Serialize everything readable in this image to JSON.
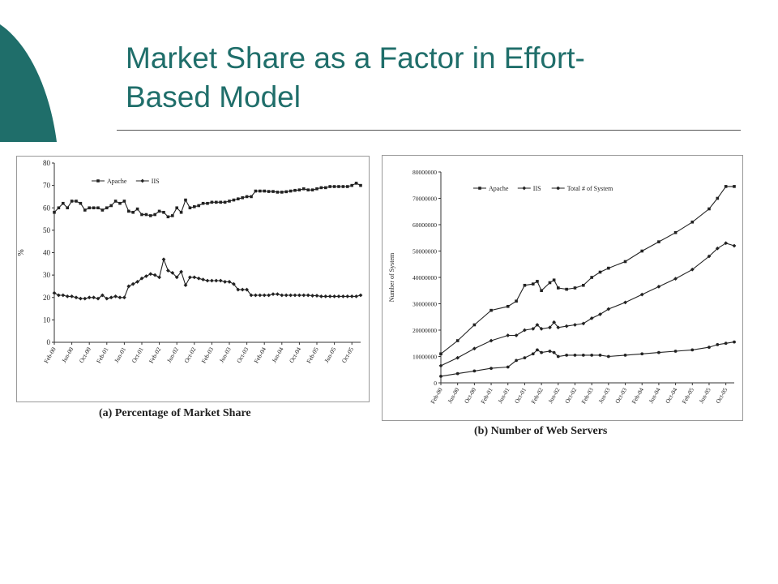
{
  "slide": {
    "title_line1": "Market Share as a Factor in Effort-",
    "title_line2": "Based Model",
    "accent_color": "#1f6e6a"
  },
  "chart_data": [
    {
      "type": "line",
      "caption": "(a) Percentage of Market Share",
      "ylabel": "%",
      "ylim": [
        0,
        80
      ],
      "yticks": [
        0,
        10,
        20,
        30,
        40,
        50,
        60,
        70,
        80
      ],
      "xticks": [
        "Feb-00",
        "Jun-00",
        "Oct-00",
        "Feb-01",
        "Jun-01",
        "Oct-01",
        "Feb-02",
        "Jun-02",
        "Oct-02",
        "Feb-03",
        "Jun-03",
        "Oct-03",
        "Feb-04",
        "Jun-04",
        "Oct-04",
        "Feb-05",
        "Jun-05",
        "Oct-05"
      ],
      "x_months_range": [
        0,
        70
      ],
      "legend_placement": "top-left",
      "grid": false,
      "series": [
        {
          "name": "Apache",
          "marker": "square",
          "points": [
            [
              0,
              58
            ],
            [
              1,
              60
            ],
            [
              2,
              62
            ],
            [
              3,
              60
            ],
            [
              4,
              63
            ],
            [
              5,
              63
            ],
            [
              6,
              62
            ],
            [
              7,
              59
            ],
            [
              8,
              60
            ],
            [
              9,
              60
            ],
            [
              10,
              60
            ],
            [
              11,
              59
            ],
            [
              12,
              60
            ],
            [
              13,
              61
            ],
            [
              14,
              63
            ],
            [
              15,
              62
            ],
            [
              16,
              63
            ],
            [
              17,
              58.5
            ],
            [
              18,
              58
            ],
            [
              19,
              59.5
            ],
            [
              20,
              57
            ],
            [
              21,
              57
            ],
            [
              22,
              56.5
            ],
            [
              23,
              57
            ],
            [
              24,
              58.5
            ],
            [
              25,
              58
            ],
            [
              26,
              56
            ],
            [
              27,
              56.5
            ],
            [
              28,
              60
            ],
            [
              29,
              58
            ],
            [
              30,
              63.5
            ],
            [
              31,
              60
            ],
            [
              32,
              60.5
            ],
            [
              33,
              61
            ],
            [
              34,
              62
            ],
            [
              35,
              62
            ],
            [
              36,
              62.5
            ],
            [
              37,
              62.5
            ],
            [
              38,
              62.5
            ],
            [
              39,
              62.5
            ],
            [
              40,
              63
            ],
            [
              41,
              63.5
            ],
            [
              42,
              64
            ],
            [
              43,
              64.5
            ],
            [
              44,
              65
            ],
            [
              45,
              65
            ],
            [
              46,
              67.5
            ],
            [
              47,
              67.5
            ],
            [
              48,
              67.5
            ],
            [
              49,
              67.3
            ],
            [
              50,
              67.3
            ],
            [
              51,
              67
            ],
            [
              52,
              67
            ],
            [
              53,
              67.2
            ],
            [
              54,
              67.5
            ],
            [
              55,
              67.8
            ],
            [
              56,
              68
            ],
            [
              57,
              68.5
            ],
            [
              58,
              68
            ],
            [
              59,
              68
            ],
            [
              60,
              68.5
            ],
            [
              61,
              69
            ],
            [
              62,
              69
            ],
            [
              63,
              69.5
            ],
            [
              64,
              69.5
            ],
            [
              65,
              69.5
            ],
            [
              66,
              69.5
            ],
            [
              67,
              69.5
            ],
            [
              68,
              70
            ],
            [
              69,
              71
            ],
            [
              70,
              70
            ]
          ]
        },
        {
          "name": "IIS",
          "marker": "diamond",
          "points": [
            [
              0,
              22
            ],
            [
              1,
              21
            ],
            [
              2,
              21
            ],
            [
              3,
              20.5
            ],
            [
              4,
              20.5
            ],
            [
              5,
              20
            ],
            [
              6,
              19.5
            ],
            [
              7,
              19.5
            ],
            [
              8,
              20
            ],
            [
              9,
              20
            ],
            [
              10,
              19.5
            ],
            [
              11,
              21
            ],
            [
              12,
              19.5
            ],
            [
              13,
              20
            ],
            [
              14,
              20.5
            ],
            [
              15,
              20
            ],
            [
              16,
              20
            ],
            [
              17,
              25
            ],
            [
              18,
              26
            ],
            [
              19,
              27
            ],
            [
              20,
              28.5
            ],
            [
              21,
              29.5
            ],
            [
              22,
              30.5
            ],
            [
              23,
              30
            ],
            [
              24,
              29
            ],
            [
              25,
              37
            ],
            [
              26,
              32
            ],
            [
              27,
              31
            ],
            [
              28,
              29
            ],
            [
              29,
              31.5
            ],
            [
              30,
              25.5
            ],
            [
              31,
              29
            ],
            [
              32,
              29
            ],
            [
              33,
              28.5
            ],
            [
              34,
              28
            ],
            [
              35,
              27.5
            ],
            [
              36,
              27.5
            ],
            [
              37,
              27.5
            ],
            [
              38,
              27.5
            ],
            [
              39,
              27
            ],
            [
              40,
              27
            ],
            [
              41,
              26
            ],
            [
              42,
              23.5
            ],
            [
              43,
              23.5
            ],
            [
              44,
              23.5
            ],
            [
              45,
              21
            ],
            [
              46,
              21
            ],
            [
              47,
              21
            ],
            [
              48,
              21
            ],
            [
              49,
              21
            ],
            [
              50,
              21.5
            ],
            [
              51,
              21.5
            ],
            [
              52,
              21
            ],
            [
              53,
              21
            ],
            [
              54,
              21
            ],
            [
              55,
              21
            ],
            [
              56,
              21
            ],
            [
              57,
              21
            ],
            [
              58,
              21
            ],
            [
              59,
              20.8
            ],
            [
              60,
              20.8
            ],
            [
              61,
              20.5
            ],
            [
              62,
              20.5
            ],
            [
              63,
              20.5
            ],
            [
              64,
              20.5
            ],
            [
              65,
              20.5
            ],
            [
              66,
              20.5
            ],
            [
              67,
              20.5
            ],
            [
              68,
              20.5
            ],
            [
              69,
              20.5
            ],
            [
              70,
              21
            ]
          ]
        }
      ]
    },
    {
      "type": "line",
      "caption": "(b) Number of Web Servers",
      "ylabel": "Number of System",
      "ylim": [
        0,
        80000000
      ],
      "yticks": [
        0,
        10000000,
        20000000,
        30000000,
        40000000,
        50000000,
        60000000,
        70000000,
        80000000
      ],
      "ytick_labels": [
        "0",
        "10000000",
        "20000000",
        "30000000",
        "40000000",
        "50000000",
        "60000000",
        "70000000",
        "80000000"
      ],
      "xticks": [
        "Feb-00",
        "Jun-00",
        "Oct-00",
        "Feb-01",
        "Jun-01",
        "Oct-01",
        "Feb-02",
        "Jun-02",
        "Oct-02",
        "Feb-03",
        "Jun-03",
        "Oct-03",
        "Feb-04",
        "Jun-04",
        "Oct-04",
        "Feb-05",
        "Jun-05",
        "Oct-05"
      ],
      "x_months_range": [
        0,
        70
      ],
      "legend_placement": "top-left",
      "grid": false,
      "series": [
        {
          "name": "Apache",
          "marker": "square",
          "points": [
            [
              0,
              11000000
            ],
            [
              4,
              16000000
            ],
            [
              8,
              22000000
            ],
            [
              12,
              27500000
            ],
            [
              16,
              29000000
            ],
            [
              18,
              31000000
            ],
            [
              20,
              37000000
            ],
            [
              22,
              37500000
            ],
            [
              23,
              38500000
            ],
            [
              24,
              35000000
            ],
            [
              26,
              38000000
            ],
            [
              27,
              39000000
            ],
            [
              28,
              36000000
            ],
            [
              30,
              35500000
            ],
            [
              32,
              36000000
            ],
            [
              34,
              37000000
            ],
            [
              36,
              40000000
            ],
            [
              38,
              42000000
            ],
            [
              40,
              43500000
            ],
            [
              44,
              46000000
            ],
            [
              48,
              50000000
            ],
            [
              52,
              53500000
            ],
            [
              56,
              57000000
            ],
            [
              60,
              61000000
            ],
            [
              64,
              66000000
            ],
            [
              66,
              70000000
            ],
            [
              68,
              74500000
            ],
            [
              70,
              74500000
            ]
          ]
        },
        {
          "name": "IIS",
          "marker": "diamond",
          "points": [
            [
              0,
              6500000
            ],
            [
              4,
              9500000
            ],
            [
              8,
              13000000
            ],
            [
              12,
              16000000
            ],
            [
              16,
              18000000
            ],
            [
              18,
              18000000
            ],
            [
              20,
              20000000
            ],
            [
              22,
              20500000
            ],
            [
              23,
              22000000
            ],
            [
              24,
              20500000
            ],
            [
              26,
              21000000
            ],
            [
              27,
              23000000
            ],
            [
              28,
              21000000
            ],
            [
              30,
              21500000
            ],
            [
              32,
              22000000
            ],
            [
              34,
              22500000
            ],
            [
              36,
              24500000
            ],
            [
              38,
              26000000
            ],
            [
              40,
              28000000
            ],
            [
              44,
              30500000
            ],
            [
              48,
              33500000
            ],
            [
              52,
              36500000
            ],
            [
              56,
              39500000
            ],
            [
              60,
              43000000
            ],
            [
              64,
              48000000
            ],
            [
              66,
              51000000
            ],
            [
              68,
              53000000
            ],
            [
              70,
              52000000
            ]
          ]
        },
        {
          "name": "Total # of System",
          "marker": "circle",
          "points": [
            [
              0,
              2500000
            ],
            [
              4,
              3500000
            ],
            [
              8,
              4500000
            ],
            [
              12,
              5500000
            ],
            [
              16,
              6000000
            ],
            [
              18,
              8500000
            ],
            [
              20,
              9500000
            ],
            [
              22,
              11000000
            ],
            [
              23,
              12500000
            ],
            [
              24,
              11500000
            ],
            [
              26,
              12000000
            ],
            [
              27,
              11500000
            ],
            [
              28,
              10000000
            ],
            [
              30,
              10500000
            ],
            [
              32,
              10500000
            ],
            [
              34,
              10500000
            ],
            [
              36,
              10500000
            ],
            [
              38,
              10500000
            ],
            [
              40,
              10000000
            ],
            [
              44,
              10500000
            ],
            [
              48,
              11000000
            ],
            [
              52,
              11500000
            ],
            [
              56,
              12000000
            ],
            [
              60,
              12500000
            ],
            [
              64,
              13500000
            ],
            [
              66,
              14500000
            ],
            [
              68,
              15000000
            ],
            [
              70,
              15500000
            ]
          ]
        }
      ]
    }
  ]
}
